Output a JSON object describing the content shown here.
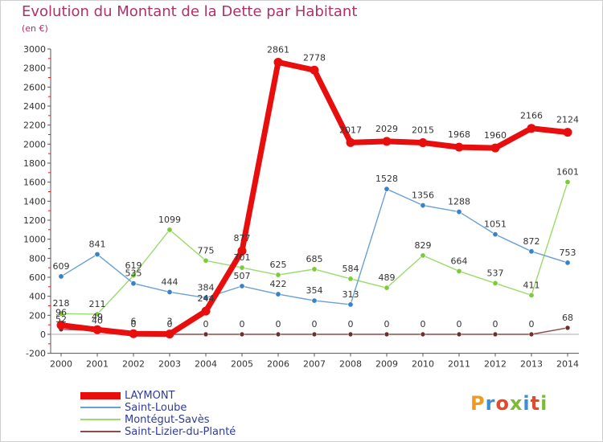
{
  "title": "Evolution du Montant de la Dette par Habitant",
  "subtitle": "(en €)",
  "logo": {
    "text": "Proxiti",
    "colors": [
      "#f29a1e",
      "#3d8fd4",
      "#e24a2b",
      "#7dbb36",
      "#3d8fd4",
      "#e24a2b",
      "#7dbb36"
    ]
  },
  "chart_data": {
    "type": "line",
    "title": "Evolution du Montant de la Dette par Habitant",
    "ylabel": "(en €)",
    "xlabel": "",
    "x": [
      "2000",
      "2001",
      "2002",
      "2003",
      "2004",
      "2005",
      "2006",
      "2007",
      "2008",
      "2009",
      "2010",
      "2011",
      "2012",
      "2013",
      "2014"
    ],
    "y_ticks": [
      -200,
      0,
      200,
      400,
      600,
      800,
      1000,
      1200,
      1400,
      1600,
      1800,
      2000,
      2200,
      2400,
      2600,
      2800,
      3000
    ],
    "ylim": [
      -200,
      3000
    ],
    "grid": false,
    "legend_position": "bottom-left",
    "series": [
      {
        "name": "LAYMONT",
        "color": "#e80e0e",
        "values": [
          96,
          49,
          6,
          3,
          244,
          877,
          2861,
          2778,
          2017,
          2029,
          2015,
          1968,
          1960,
          2166,
          2124
        ],
        "labels": [
          "96",
          "49",
          "6",
          "3",
          "244",
          "877",
          "2861",
          "2778",
          "2017",
          "2029",
          "2015",
          "1968",
          "1960",
          "2166",
          "2124"
        ]
      },
      {
        "name": "Saint-Loube",
        "color": "#6aa0d6",
        "values": [
          609,
          841,
          535,
          444,
          384,
          507,
          422,
          354,
          313,
          1528,
          1356,
          1288,
          1051,
          872,
          753
        ],
        "labels": [
          "609",
          "841",
          "535",
          "444",
          "384",
          "507",
          "422",
          "354",
          "313",
          "1528",
          "1356",
          "1288",
          "1051",
          "872",
          "753"
        ]
      },
      {
        "name": "Montégut-Savès",
        "color": "#9adb6a",
        "values": [
          218,
          211,
          619,
          1099,
          775,
          701,
          625,
          685,
          584,
          489,
          829,
          664,
          537,
          411,
          1601
        ],
        "labels": [
          "218",
          "211",
          "619",
          "1099",
          "775",
          "701",
          "625",
          "685",
          "584",
          "489",
          "829",
          "664",
          "537",
          "411",
          "1601"
        ]
      },
      {
        "name": "Saint-Lizier-du-Planté",
        "color": "#8e4a4a",
        "values": [
          52,
          40,
          0,
          0,
          0,
          0,
          0,
          0,
          0,
          0,
          0,
          0,
          0,
          0,
          68
        ],
        "labels": [
          "52",
          "40",
          "0",
          "0",
          "0",
          "0",
          "0",
          "0",
          "0",
          "0",
          "0",
          "0",
          "0",
          "0",
          "68"
        ]
      }
    ]
  }
}
